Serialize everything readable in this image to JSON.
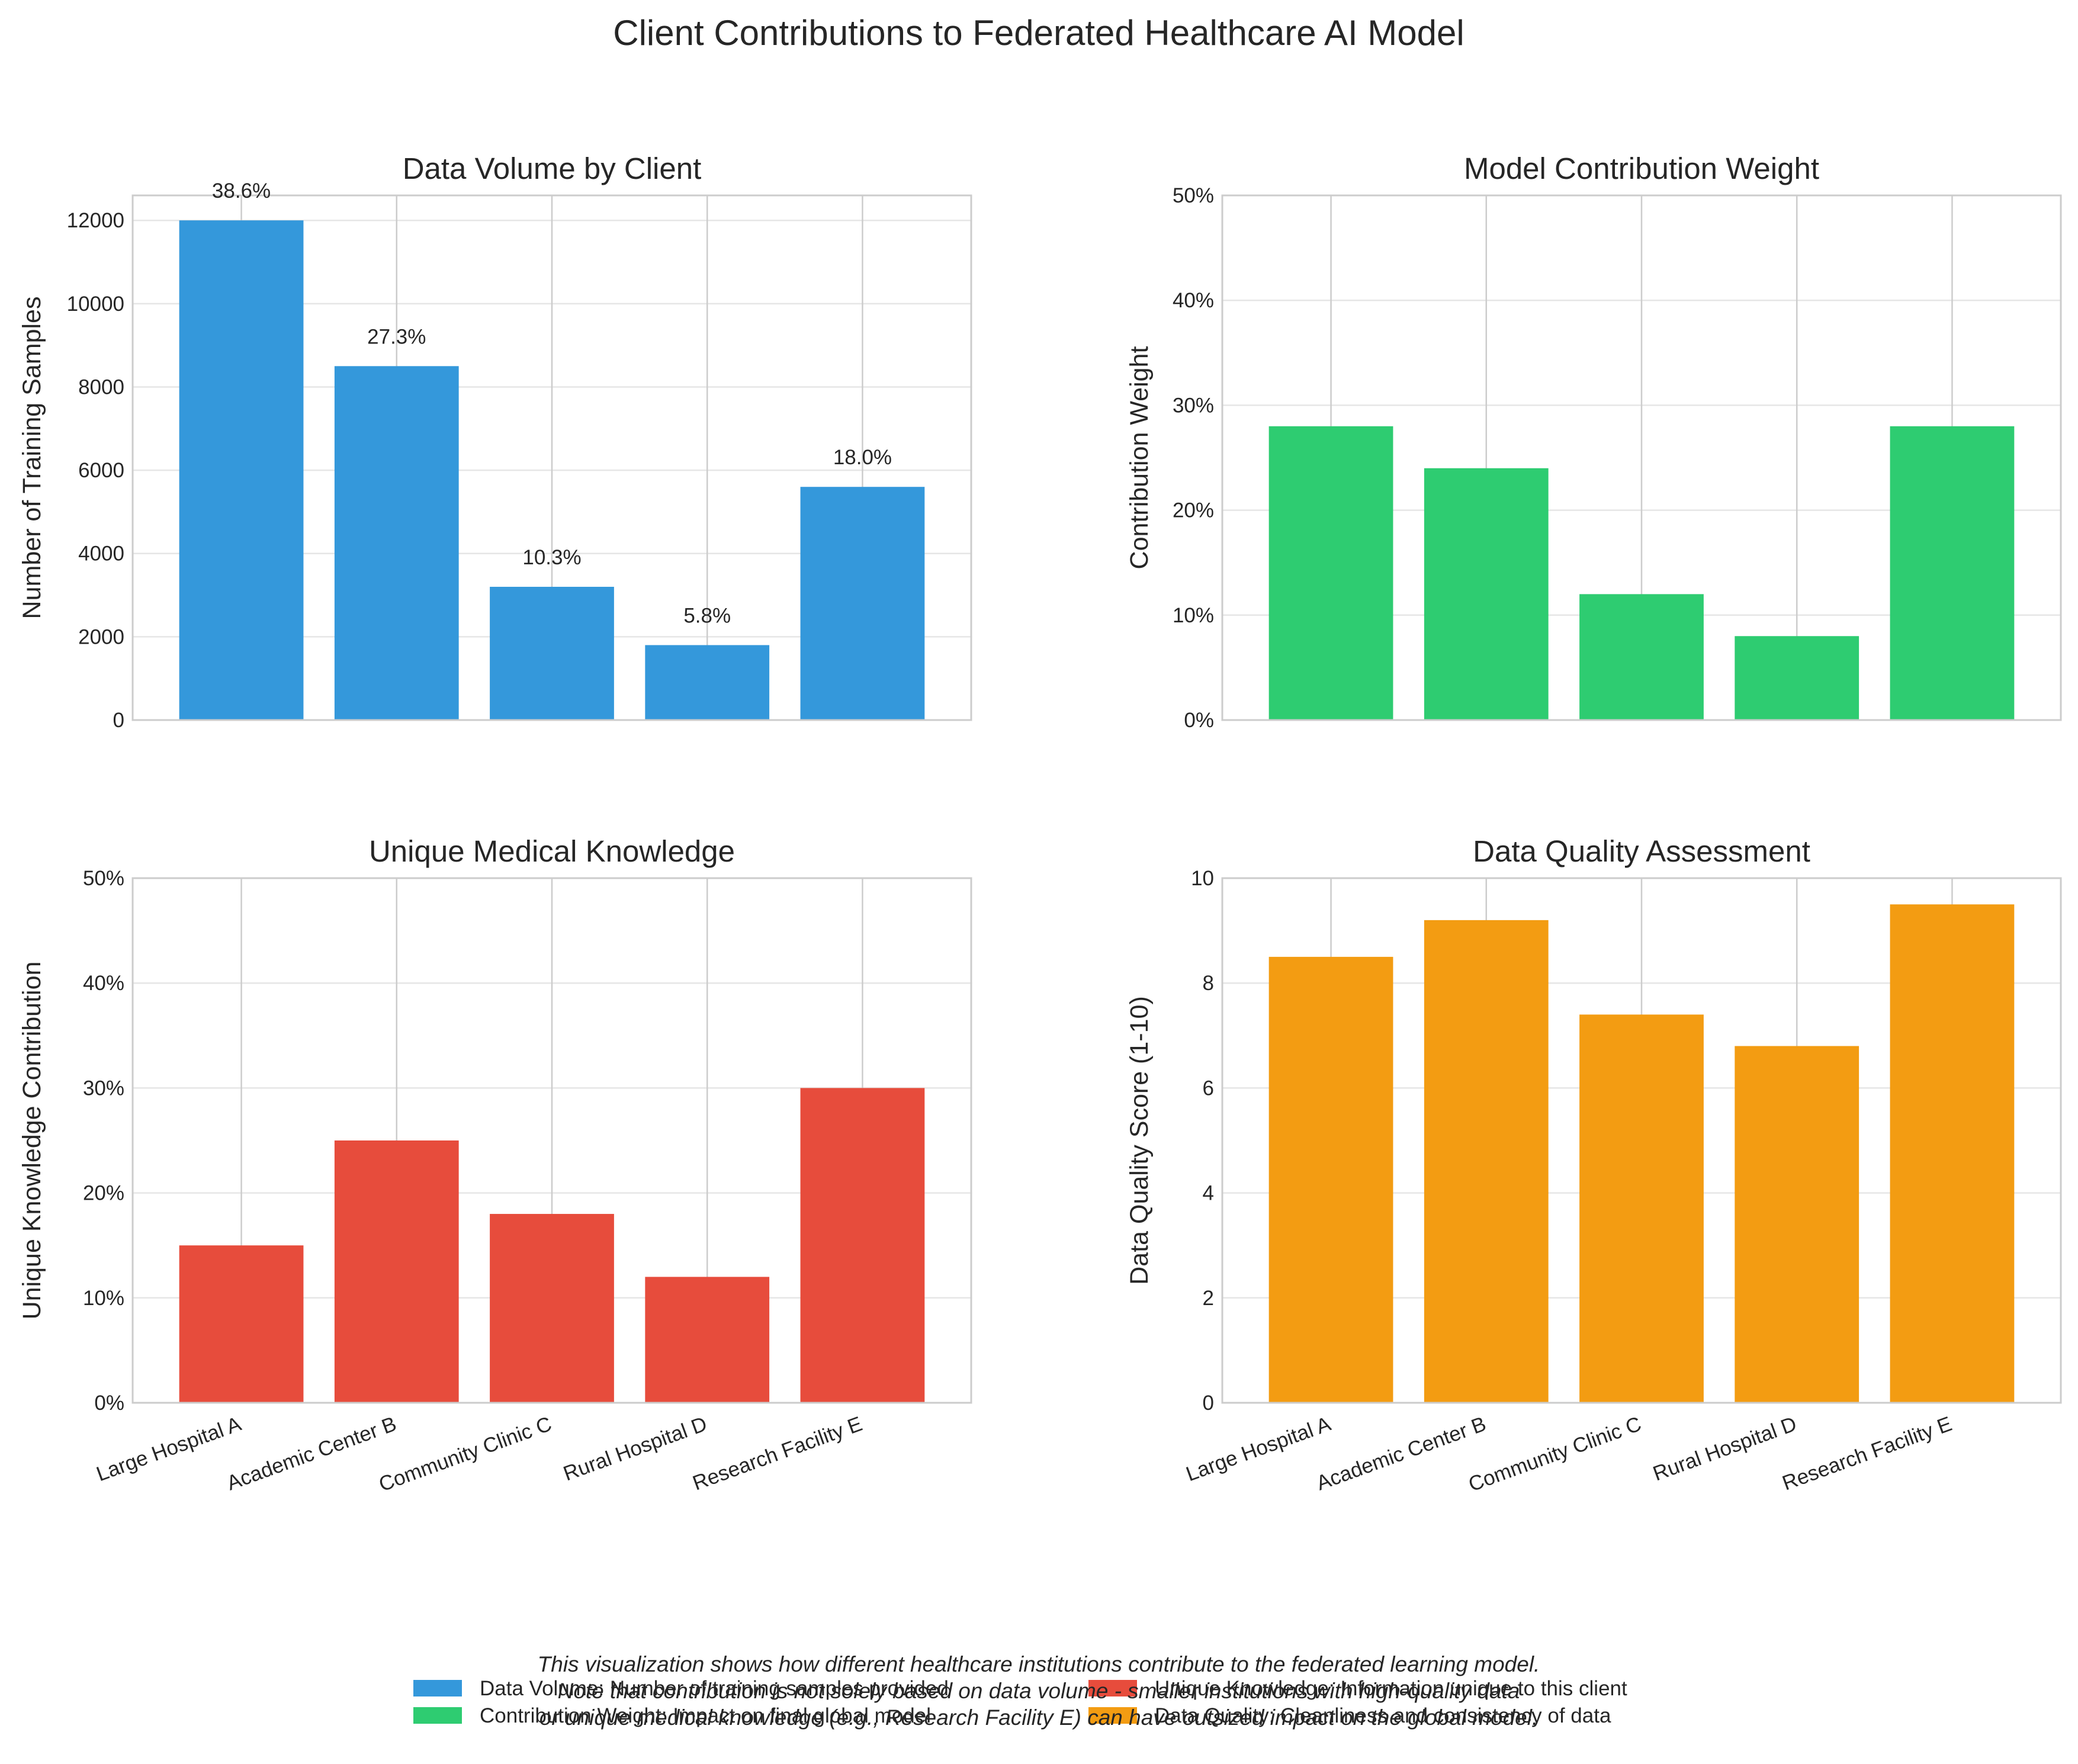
{
  "title": "Client Contributions to Federated Healthcare AI Model",
  "colors": {
    "volume": "#3498db",
    "weight": "#2ecc71",
    "knowledge": "#e74c3c",
    "quality": "#f39c12",
    "grid": "#e6e6e6",
    "frame": "#cccccc"
  },
  "chart_data": [
    {
      "type": "bar",
      "title": "Data Volume by Client",
      "ylabel": "Number of Training Samples",
      "categories": [
        "Large Hospital A",
        "Academic Center B",
        "Community Clinic C",
        "Rural Hospital D",
        "Research Facility E"
      ],
      "values": [
        12000,
        8500,
        3200,
        1800,
        5600
      ],
      "data_labels": [
        "38.6%",
        "27.3%",
        "10.3%",
        "5.8%",
        "18.0%"
      ],
      "ylim": [
        0,
        12600
      ],
      "yticks": [
        0,
        2000,
        4000,
        6000,
        8000,
        10000,
        12000
      ],
      "ytick_labels": [
        "0",
        "2000",
        "4000",
        "6000",
        "8000",
        "10000",
        "12000"
      ],
      "show_xticklabels": false,
      "color": "#3498db"
    },
    {
      "type": "bar",
      "title": "Model Contribution Weight",
      "ylabel": "Contribution Weight",
      "categories": [
        "Large Hospital A",
        "Academic Center B",
        "Community Clinic C",
        "Rural Hospital D",
        "Research Facility E"
      ],
      "values": [
        0.28,
        0.24,
        0.12,
        0.08,
        0.28
      ],
      "ylim": [
        0,
        0.5
      ],
      "yticks": [
        0,
        0.1,
        0.2,
        0.3,
        0.4,
        0.5
      ],
      "ytick_labels": [
        "0%",
        "10%",
        "20%",
        "30%",
        "40%",
        "50%"
      ],
      "show_xticklabels": false,
      "color": "#2ecc71"
    },
    {
      "type": "bar",
      "title": "Unique Medical Knowledge",
      "ylabel": "Unique Knowledge Contribution",
      "categories": [
        "Large Hospital A",
        "Academic Center B",
        "Community Clinic C",
        "Rural Hospital D",
        "Research Facility E"
      ],
      "values": [
        0.15,
        0.25,
        0.18,
        0.12,
        0.3
      ],
      "ylim": [
        0,
        0.5
      ],
      "yticks": [
        0,
        0.1,
        0.2,
        0.3,
        0.4,
        0.5
      ],
      "ytick_labels": [
        "0%",
        "10%",
        "20%",
        "30%",
        "40%",
        "50%"
      ],
      "show_xticklabels": true,
      "color": "#e74c3c"
    },
    {
      "type": "bar",
      "title": "Data Quality Assessment",
      "ylabel": "Data Quality Score (1-10)",
      "categories": [
        "Large Hospital A",
        "Academic Center B",
        "Community Clinic C",
        "Rural Hospital D",
        "Research Facility E"
      ],
      "values": [
        8.5,
        9.2,
        7.4,
        6.8,
        9.5
      ],
      "ylim": [
        0,
        10
      ],
      "yticks": [
        0,
        2,
        4,
        6,
        8,
        10
      ],
      "ytick_labels": [
        "0",
        "2",
        "4",
        "6",
        "8",
        "10"
      ],
      "show_xticklabels": true,
      "color": "#f39c12"
    }
  ],
  "legend": {
    "position": "bottom-center",
    "items": [
      {
        "label": "Data Volume: Number of training samples provided",
        "color": "#3498db"
      },
      {
        "label": "Contribution Weight: Impact on final global model",
        "color": "#2ecc71"
      },
      {
        "label": "Unique Knowledge: Information unique to this client",
        "color": "#e74c3c"
      },
      {
        "label": "Data Quality: Cleanliness and consistency of data",
        "color": "#f39c12"
      }
    ]
  },
  "note_lines": [
    "This visualization shows how different healthcare institutions contribute to the federated learning model.",
    "Note that contribution is not solely based on data volume - smaller institutions with high-quality data",
    "or unique medical knowledge (e.g., Research Facility E) can have outsized impact on the global model."
  ]
}
